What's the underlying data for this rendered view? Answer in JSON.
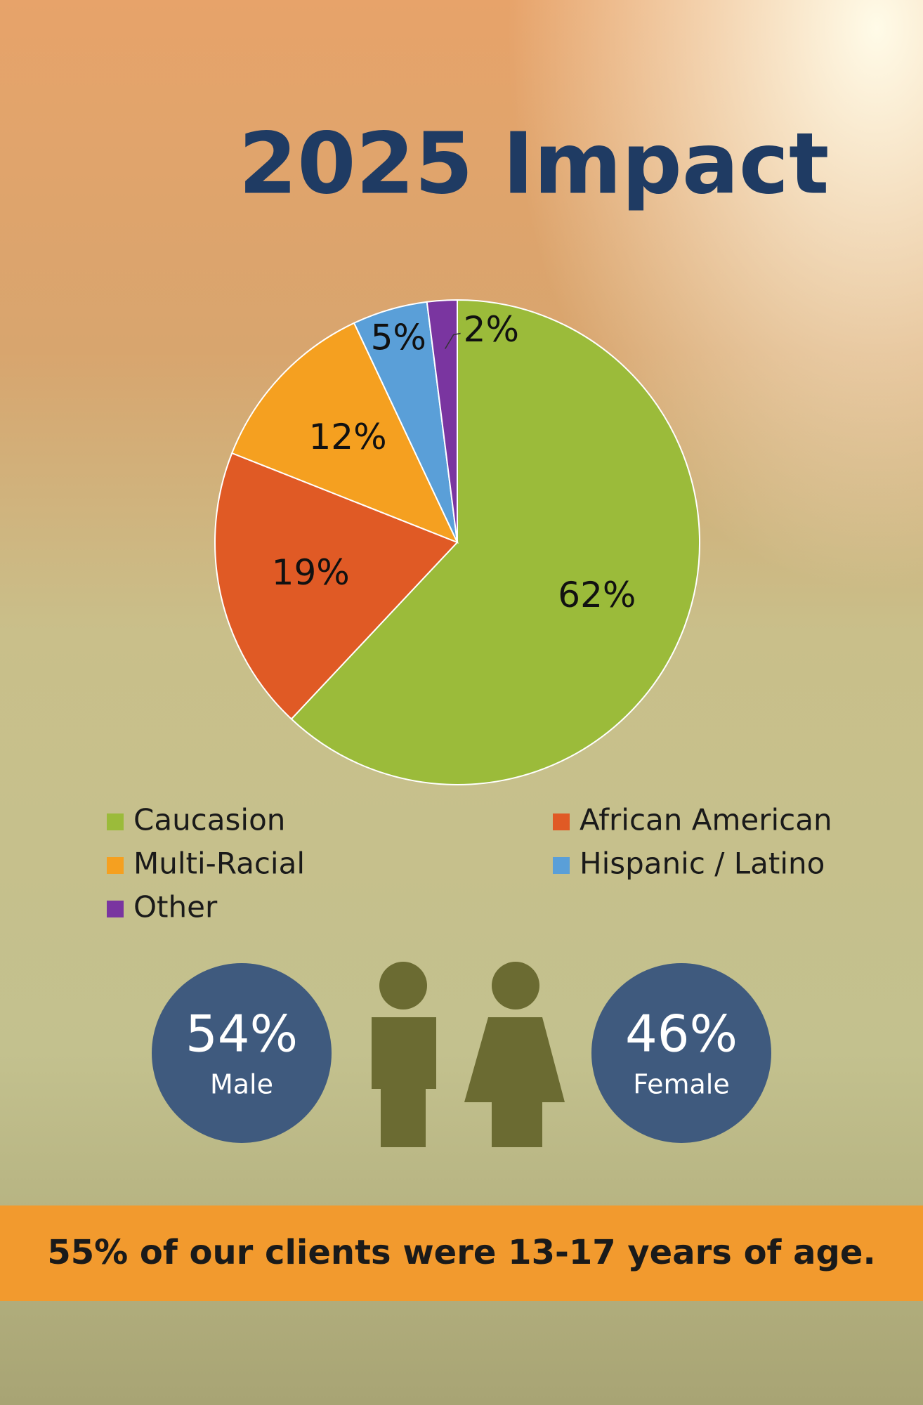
{
  "chart_data": {
    "type": "pie",
    "title": "2025 Impact",
    "categories": [
      "Caucasion",
      "African American",
      "Multi-Racial",
      "Hispanic / Latino",
      "Other"
    ],
    "values": [
      62,
      19,
      12,
      5,
      2
    ],
    "value_labels": [
      "62%",
      "19%",
      "12%",
      "5%",
      "2%"
    ],
    "colors": [
      "#9bbb3a",
      "#e05a25",
      "#f5a020",
      "#5a9fd8",
      "#7a35a0"
    ]
  },
  "gender": {
    "categories": [
      "Male",
      "Female"
    ],
    "values": [
      54,
      46
    ],
    "value_labels": [
      "54%",
      "46%"
    ],
    "color": "#3f5a7e",
    "figure_color": "#6b6b32"
  },
  "footer": "55% of our clients were 13-17 years of age."
}
